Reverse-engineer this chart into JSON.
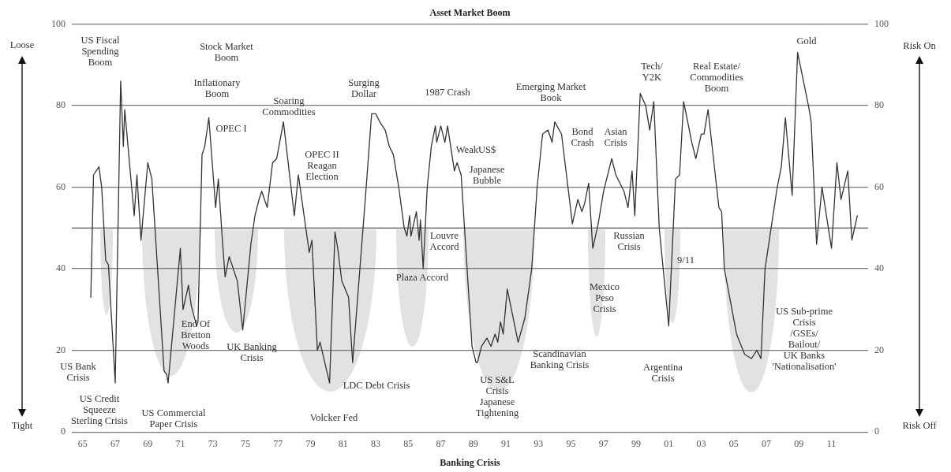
{
  "chart_data": {
    "type": "line",
    "title": "Asset Market Boom",
    "xlabel": "Banking Crisis",
    "x": [
      "1966-01",
      "1966-03",
      "1966-07",
      "1966-09",
      "1966-12",
      "1967-02",
      "1967-07",
      "1967-11",
      "1968-01",
      "1968-02",
      "1968-09",
      "1968-11",
      "1969-02",
      "1969-07",
      "1969-10",
      "1970-07",
      "1970-09",
      "1970-10",
      "1971-07",
      "1971-09",
      "1972-01",
      "1972-03",
      "1972-07",
      "1972-08",
      "1972-11",
      "1973-01",
      "1973-04",
      "1973-09",
      "1973-11",
      "1974-02",
      "1974-04",
      "1974-07",
      "1974-09",
      "1974-12",
      "1975-01",
      "1975-05",
      "1975-11",
      "1976-02",
      "1976-05",
      "1976-07",
      "1976-11",
      "1977-03",
      "1977-06",
      "1977-11",
      "1978-07",
      "1978-10",
      "1979-06",
      "1979-08",
      "1979-12",
      "1980-02",
      "1980-09",
      "1981-01",
      "1981-03",
      "1981-06",
      "1981-11",
      "1982-02",
      "1982-12",
      "1983-04",
      "1983-07",
      "1983-10",
      "1984-02",
      "1984-05",
      "1984-08",
      "1984-12",
      "1985-04",
      "1985-06",
      "1985-08",
      "1985-09",
      "1986-01",
      "1986-03",
      "1986-04",
      "1986-06",
      "1986-09",
      "1986-12",
      "1987-03",
      "1987-04",
      "1987-07",
      "1987-10",
      "1987-12",
      "1988-05",
      "1988-07",
      "1988-10",
      "1989-06",
      "1989-09",
      "1989-10",
      "1990-01",
      "1990-05",
      "1990-08",
      "1990-11",
      "1991-01",
      "1991-03",
      "1991-05",
      "1991-08",
      "1992-04",
      "1992-09",
      "1993-02",
      "1993-06",
      "1993-10",
      "1994-02",
      "1994-05",
      "1994-07",
      "1994-12",
      "1995-08",
      "1995-12",
      "1996-03",
      "1996-05",
      "1996-08",
      "1996-11",
      "1997-03",
      "1997-07",
      "1998-01",
      "1998-04",
      "1998-10",
      "1999-01",
      "1999-04",
      "1999-06",
      "1999-10",
      "2000-02",
      "2000-05",
      "2000-08",
      "2000-12",
      "2001-07",
      "2001-12",
      "2002-03",
      "2002-06",
      "2002-12",
      "2003-03",
      "2003-07",
      "2003-09",
      "2003-12",
      "2004-03",
      "2004-08",
      "2004-10",
      "2004-12",
      "2005-09",
      "2006-03",
      "2006-08",
      "2006-12",
      "2007-03",
      "2007-06",
      "2008-03",
      "2008-06",
      "2008-09",
      "2009-02",
      "2009-06",
      "2010-02",
      "2010-04",
      "2010-08",
      "2010-12",
      "2011-07",
      "2011-11",
      "2012-02",
      "2012-07",
      "2012-10",
      "2013-02"
    ],
    "series": [
      {
        "color": "#333333",
        "values": [
          33,
          63,
          65,
          60,
          42,
          41,
          12,
          86,
          70,
          79,
          53,
          63,
          47,
          66,
          62,
          15,
          14,
          12,
          45,
          30,
          36,
          31,
          26,
          27,
          68,
          70,
          77,
          55,
          62,
          47,
          38,
          43,
          41,
          38,
          37,
          25,
          46,
          53,
          57,
          59,
          55,
          66,
          67,
          76,
          53,
          63,
          44,
          47,
          20,
          22,
          12,
          49,
          45,
          37,
          33,
          17,
          60,
          78,
          78,
          76,
          74,
          70,
          68,
          60,
          50,
          48,
          53,
          48,
          54,
          47,
          52,
          40,
          60,
          70,
          75,
          71,
          75,
          71,
          75,
          64,
          66,
          63,
          21,
          17,
          17,
          21,
          23,
          21,
          24,
          22,
          27,
          24,
          35,
          22,
          28,
          40,
          60,
          73,
          74,
          71,
          76,
          73,
          51,
          57,
          54,
          56,
          61,
          45,
          51,
          59,
          67,
          63,
          59,
          55,
          64,
          53,
          83,
          80,
          74,
          81,
          50,
          26,
          62,
          63,
          81,
          71,
          67,
          73,
          73,
          79,
          70,
          55,
          54,
          40,
          24,
          19,
          18,
          20,
          18,
          40,
          60,
          65,
          77,
          58,
          93,
          80,
          76,
          46,
          60,
          45,
          66,
          57,
          64,
          47,
          53
        ]
      }
    ],
    "xlim": [
      "1964-11",
      "2013-10"
    ],
    "xticks": [
      {
        "value": "1965-07",
        "label": "65"
      },
      {
        "value": "1967-07",
        "label": "67"
      },
      {
        "value": "1969-07",
        "label": "69"
      },
      {
        "value": "1971-07",
        "label": "71"
      },
      {
        "value": "1973-07",
        "label": "73"
      },
      {
        "value": "1975-07",
        "label": "75"
      },
      {
        "value": "1977-07",
        "label": "77"
      },
      {
        "value": "1979-07",
        "label": "79"
      },
      {
        "value": "1981-07",
        "label": "81"
      },
      {
        "value": "1983-07",
        "label": "83"
      },
      {
        "value": "1985-07",
        "label": "85"
      },
      {
        "value": "1987-07",
        "label": "87"
      },
      {
        "value": "1989-07",
        "label": "89"
      },
      {
        "value": "1991-07",
        "label": "91"
      },
      {
        "value": "1993-07",
        "label": "93"
      },
      {
        "value": "1995-07",
        "label": "95"
      },
      {
        "value": "1997-07",
        "label": "97"
      },
      {
        "value": "1999-07",
        "label": "99"
      },
      {
        "value": "2001-07",
        "label": "01"
      },
      {
        "value": "2003-07",
        "label": "03"
      },
      {
        "value": "2005-07",
        "label": "05"
      },
      {
        "value": "2007-07",
        "label": "07"
      },
      {
        "value": "2009-07",
        "label": "09"
      },
      {
        "value": "2011-07",
        "label": "11"
      }
    ],
    "ylim": [
      0,
      100
    ],
    "yticks": [
      0,
      20,
      40,
      60,
      80,
      100
    ],
    "y2lim": [
      0,
      100
    ],
    "y2ticks": [
      0,
      20,
      40,
      60,
      80,
      100
    ],
    "grid": "y",
    "ref_lines": [
      {
        "axis": "y",
        "value": 50,
        "color": "#555555"
      }
    ],
    "annotations": [
      "Loose",
      "Tight",
      "Risk On",
      "Risk Off",
      "US Fiscal\nSpending\nBoom",
      "Stock Market\nBoom",
      "Inflationary\nBoom",
      "Soaring\nCommodities",
      "OPEC I",
      "OPEC II\nReagan\nElection",
      "Surging\nDollar",
      "1987 Crash",
      "WeakUS$",
      "Japanese\nBubble",
      "Emerging Market\nBook",
      "Bond\nCrash",
      "Asian\nCrisis",
      "Tech/\nY2K",
      "Real Estate/\nCommodities\nBoom",
      "Gold",
      "Louvre\nAccord",
      "Plaza Accord",
      "US S&L\nCrisis\nJapanese\nTightening",
      "Scandinavian\nBanking Crisis",
      "Mexico\nPeso\nCrisis",
      "Russian\nCrisis",
      "9/11",
      "Argentina\nCrisis",
      "US Sub-prime\nCrisis\n/GSEs/\nBailout/\nUK Banks\n'Nationalisation'",
      "End Of\nBretton\nWoods",
      "UK Banking\nCrisis",
      "US Bank\nCrisis",
      "US Credit\nSqueeze\nSterling Crisis",
      "US Commercial\nPaper Crisis",
      "Volcker Fed",
      "LDC Debt Crisis"
    ]
  }
}
